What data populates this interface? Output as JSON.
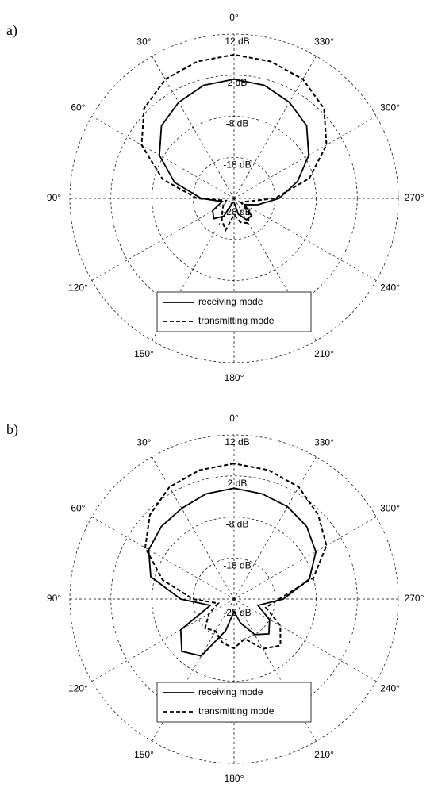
{
  "chart_data": [
    {
      "type": "polar",
      "panel_label": "a)",
      "theta_ticks": [
        {
          "value": 0,
          "label": "0°"
        },
        {
          "value": 30,
          "label": "30°"
        },
        {
          "value": 60,
          "label": "60°"
        },
        {
          "value": 90,
          "label": "90°"
        },
        {
          "value": 120,
          "label": "120°"
        },
        {
          "value": 150,
          "label": "150°"
        },
        {
          "value": 180,
          "label": "180°"
        },
        {
          "value": 210,
          "label": "210°"
        },
        {
          "value": 240,
          "label": "240°"
        },
        {
          "value": 270,
          "label": "270°"
        },
        {
          "value": 300,
          "label": "300°"
        },
        {
          "value": 330,
          "label": "330°"
        }
      ],
      "rlim": [
        -28,
        12
      ],
      "rticks": [
        {
          "value": -28,
          "label": "-28 dB"
        },
        {
          "value": -18,
          "label": "-18 dB"
        },
        {
          "value": -8,
          "label": "-8 dB"
        },
        {
          "value": 2,
          "label": "2 dB"
        },
        {
          "value": 12,
          "label": "12 dB"
        }
      ],
      "theta": [
        0,
        15,
        30,
        45,
        60,
        75,
        90,
        105,
        120,
        135,
        150,
        165,
        180,
        195,
        210,
        225,
        240,
        255,
        270,
        285,
        300,
        315,
        330,
        345
      ],
      "legend": "lower center",
      "series": [
        {
          "name": "receiving mode",
          "color": "#000000",
          "dashed": false,
          "values": [
            1,
            0.5,
            -1,
            -3,
            -7,
            -13,
            -20,
            -25,
            -22,
            -21,
            -23,
            -27,
            -27,
            -24,
            -22,
            -22,
            -25,
            -22,
            -17,
            -12,
            -7,
            -3,
            -1,
            0.5
          ]
        },
        {
          "name": "transmitting mode",
          "color": "#000000",
          "dashed": true,
          "values": [
            7,
            6.5,
            5.5,
            3,
            -2,
            -10,
            -19,
            -26,
            -25,
            -24,
            -22,
            -20,
            -24,
            -22,
            -21,
            -23,
            -26,
            -25,
            -18,
            -9,
            -2,
            3,
            5.5,
            6.5
          ]
        }
      ]
    },
    {
      "type": "polar",
      "panel_label": "b)",
      "theta_ticks": [
        {
          "value": 0,
          "label": "0°"
        },
        {
          "value": 30,
          "label": "30°"
        },
        {
          "value": 60,
          "label": "60°"
        },
        {
          "value": 90,
          "label": "90°"
        },
        {
          "value": 120,
          "label": "120°"
        },
        {
          "value": 150,
          "label": "150°"
        },
        {
          "value": 180,
          "label": "180°"
        },
        {
          "value": 210,
          "label": "210°"
        },
        {
          "value": 240,
          "label": "240°"
        },
        {
          "value": 270,
          "label": "270°"
        },
        {
          "value": 300,
          "label": "300°"
        },
        {
          "value": 330,
          "label": "330°"
        }
      ],
      "rlim": [
        -28,
        12
      ],
      "rticks": [
        {
          "value": -28,
          "label": "-28 dB"
        },
        {
          "value": -18,
          "label": "-18 dB"
        },
        {
          "value": -8,
          "label": "-8 dB"
        },
        {
          "value": 2,
          "label": "2 dB"
        },
        {
          "value": 12,
          "label": "12 dB"
        }
      ],
      "theta": [
        0,
        15,
        30,
        45,
        60,
        75,
        90,
        105,
        120,
        135,
        150,
        165,
        180,
        195,
        210,
        225,
        240,
        255,
        270,
        285,
        300,
        315,
        330,
        345
      ],
      "legend": "lower center",
      "series": [
        {
          "name": "receiving mode",
          "color": "#000000",
          "dashed": false,
          "values": [
            -1,
            -1.5,
            -2.5,
            -3,
            -4,
            -7,
            -15,
            -22,
            -13,
            -10,
            -12,
            -20,
            -25,
            -22,
            -18,
            -16,
            -18,
            -22,
            -16,
            -9,
            -5,
            -3,
            -2,
            -1.5
          ]
        },
        {
          "name": "transmitting mode",
          "color": "#000000",
          "dashed": true,
          "values": [
            5,
            4.5,
            3.5,
            1,
            -3,
            -10,
            -18,
            -24,
            -21,
            -18,
            -19,
            -17,
            -16,
            -18,
            -14,
            -12,
            -15,
            -20,
            -17,
            -8,
            -2,
            1,
            3.5,
            4.5
          ]
        }
      ]
    }
  ]
}
